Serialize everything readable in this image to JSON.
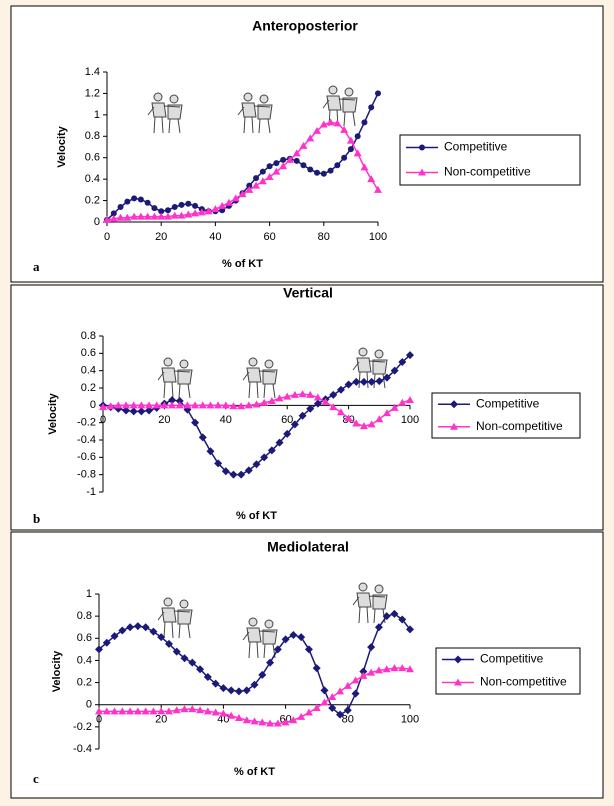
{
  "chart_data": [
    {
      "type": "line",
      "title": "Anteroposterior",
      "panel_label": "a",
      "xlabel": "% of KT",
      "ylabel": "Velocity",
      "x": [
        0,
        2.5,
        5,
        7.5,
        10,
        12.5,
        15,
        17.5,
        20,
        22.5,
        25,
        27.5,
        30,
        32.5,
        35,
        37.5,
        40,
        42.5,
        45,
        47.5,
        50,
        52.5,
        55,
        57.5,
        60,
        62.5,
        65,
        67.5,
        70,
        72.5,
        75,
        77.5,
        80,
        82.5,
        85,
        87.5,
        90,
        92.5,
        95,
        97.5,
        100
      ],
      "series": [
        {
          "name": "Competitive",
          "color": "#1b1a78",
          "marker": "circle",
          "values": [
            0.02,
            0.08,
            0.14,
            0.19,
            0.22,
            0.21,
            0.18,
            0.13,
            0.1,
            0.11,
            0.14,
            0.16,
            0.17,
            0.15,
            0.12,
            0.1,
            0.1,
            0.11,
            0.15,
            0.2,
            0.27,
            0.34,
            0.41,
            0.47,
            0.52,
            0.55,
            0.58,
            0.59,
            0.57,
            0.53,
            0.49,
            0.46,
            0.45,
            0.48,
            0.53,
            0.6,
            0.68,
            0.8,
            0.93,
            1.07,
            1.2
          ]
        },
        {
          "name": "Non-competitive",
          "color": "#ff33cc",
          "marker": "triangle",
          "values": [
            0.02,
            0.03,
            0.04,
            0.04,
            0.05,
            0.05,
            0.05,
            0.05,
            0.05,
            0.05,
            0.06,
            0.06,
            0.07,
            0.08,
            0.09,
            0.1,
            0.12,
            0.15,
            0.18,
            0.22,
            0.26,
            0.3,
            0.34,
            0.38,
            0.42,
            0.47,
            0.52,
            0.58,
            0.64,
            0.71,
            0.78,
            0.85,
            0.91,
            0.93,
            0.92,
            0.86,
            0.76,
            0.64,
            0.51,
            0.4,
            0.3
          ]
        }
      ],
      "xlim": [
        0,
        100
      ],
      "xticks": [
        0,
        20,
        40,
        60,
        80,
        100
      ],
      "ylim": [
        0,
        1.4
      ],
      "yticks": [
        0,
        0.2,
        0.4,
        0.6,
        0.8,
        1,
        1.2,
        1.4
      ],
      "legend": "right"
    },
    {
      "type": "line",
      "title": "Vertical",
      "panel_label": "b",
      "xlabel": "% of KT",
      "ylabel": "Velocity",
      "x": [
        0,
        2.5,
        5,
        7.5,
        10,
        12.5,
        15,
        17.5,
        20,
        22.5,
        25,
        27.5,
        30,
        32.5,
        35,
        37.5,
        40,
        42.5,
        45,
        47.5,
        50,
        52.5,
        55,
        57.5,
        60,
        62.5,
        65,
        67.5,
        70,
        72.5,
        75,
        77.5,
        80,
        82.5,
        85,
        87.5,
        90,
        92.5,
        95,
        97.5,
        100
      ],
      "series": [
        {
          "name": "Competitive",
          "color": "#1b1a78",
          "marker": "diamond",
          "values": [
            0,
            -0.02,
            -0.04,
            -0.06,
            -0.07,
            -0.07,
            -0.06,
            -0.03,
            0.02,
            0.06,
            0.05,
            -0.05,
            -0.2,
            -0.37,
            -0.53,
            -0.67,
            -0.76,
            -0.8,
            -0.8,
            -0.75,
            -0.68,
            -0.6,
            -0.52,
            -0.43,
            -0.33,
            -0.22,
            -0.12,
            -0.04,
            0.02,
            0.07,
            0.12,
            0.18,
            0.24,
            0.27,
            0.27,
            0.27,
            0.28,
            0.32,
            0.4,
            0.5,
            0.58
          ]
        },
        {
          "name": "Non-competitive",
          "color": "#ff33cc",
          "marker": "triangle",
          "values": [
            -0.02,
            -0.01,
            0,
            0,
            0,
            0,
            0,
            0,
            0,
            0,
            0,
            0,
            0,
            0,
            0,
            0,
            0,
            -0.01,
            -0.01,
            0,
            0.01,
            0.03,
            0.05,
            0.08,
            0.1,
            0.12,
            0.13,
            0.12,
            0.09,
            0.04,
            -0.02,
            -0.08,
            -0.15,
            -0.21,
            -0.24,
            -0.22,
            -0.16,
            -0.09,
            -0.03,
            0.03,
            0.06
          ]
        }
      ],
      "xlim": [
        0,
        100
      ],
      "xticks": [
        0,
        20,
        40,
        60,
        80,
        100
      ],
      "ylim": [
        -1,
        0.8
      ],
      "yticks": [
        -1,
        -0.8,
        -0.6,
        -0.4,
        -0.2,
        0,
        0.2,
        0.4,
        0.6,
        0.8
      ],
      "legend": "right"
    },
    {
      "type": "line",
      "title": "Mediolateral",
      "panel_label": "c",
      "xlabel": "% of KT",
      "ylabel": "Velocity",
      "x": [
        0,
        2.5,
        5,
        7.5,
        10,
        12.5,
        15,
        17.5,
        20,
        22.5,
        25,
        27.5,
        30,
        32.5,
        35,
        37.5,
        40,
        42.5,
        45,
        47.5,
        50,
        52.5,
        55,
        57.5,
        60,
        62.5,
        65,
        67.5,
        70,
        72.5,
        75,
        77.5,
        80,
        82.5,
        85,
        87.5,
        90,
        92.5,
        95,
        97.5,
        100
      ],
      "series": [
        {
          "name": "Competitive",
          "color": "#1b1a78",
          "marker": "diamond",
          "values": [
            0.5,
            0.56,
            0.62,
            0.67,
            0.7,
            0.71,
            0.7,
            0.66,
            0.61,
            0.55,
            0.48,
            0.42,
            0.38,
            0.32,
            0.25,
            0.19,
            0.15,
            0.13,
            0.12,
            0.13,
            0.18,
            0.27,
            0.38,
            0.5,
            0.59,
            0.63,
            0.61,
            0.5,
            0.33,
            0.13,
            -0.03,
            -0.09,
            -0.05,
            0.1,
            0.3,
            0.52,
            0.7,
            0.8,
            0.82,
            0.77,
            0.68
          ]
        },
        {
          "name": "Non-competitive",
          "color": "#ff33cc",
          "marker": "triangle",
          "values": [
            -0.06,
            -0.06,
            -0.06,
            -0.06,
            -0.06,
            -0.06,
            -0.06,
            -0.06,
            -0.06,
            -0.06,
            -0.05,
            -0.04,
            -0.04,
            -0.05,
            -0.06,
            -0.07,
            -0.08,
            -0.1,
            -0.12,
            -0.14,
            -0.15,
            -0.16,
            -0.17,
            -0.17,
            -0.16,
            -0.14,
            -0.11,
            -0.07,
            -0.03,
            0.02,
            0.07,
            0.12,
            0.17,
            0.22,
            0.26,
            0.29,
            0.31,
            0.32,
            0.33,
            0.33,
            0.32
          ]
        }
      ],
      "xlim": [
        0,
        100
      ],
      "xticks": [
        0,
        20,
        40,
        60,
        80,
        100
      ],
      "ylim": [
        -0.4,
        1
      ],
      "yticks": [
        -0.4,
        -0.2,
        0,
        0.2,
        0.4,
        0.6,
        0.8,
        1
      ],
      "legend": "right"
    }
  ]
}
